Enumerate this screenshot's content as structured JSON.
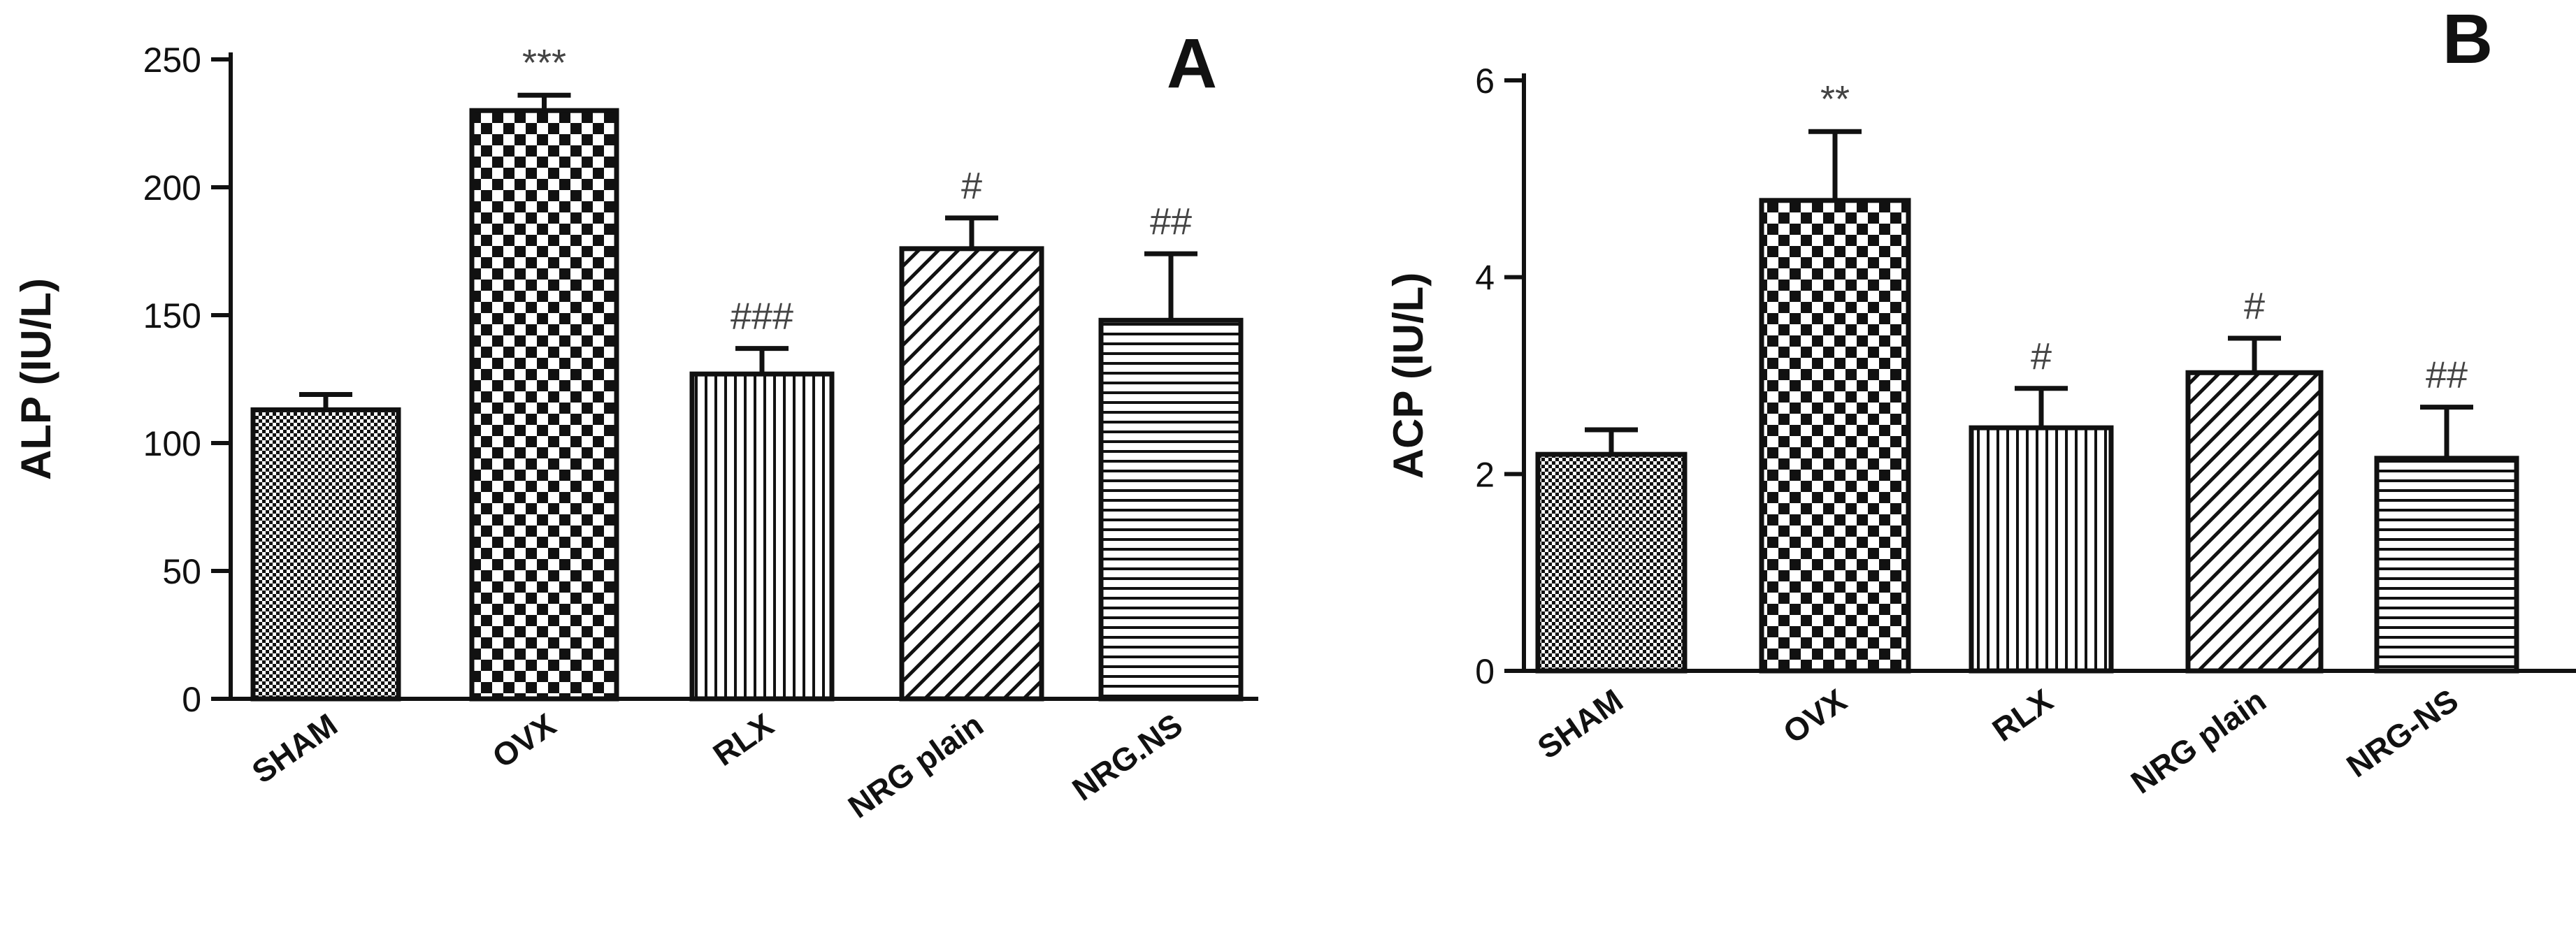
{
  "chart_data": [
    {
      "panel_label": "A",
      "type": "bar",
      "ylabel": "ALP (IU/L)",
      "ylim": [
        0,
        250
      ],
      "yticks": [
        "0",
        "50",
        "100",
        "150",
        "200",
        "250"
      ],
      "categories": [
        "SHAM",
        "OVX",
        "RLX",
        "NRG plain",
        "NRG.NS"
      ],
      "values": [
        113,
        230,
        127,
        176,
        148
      ],
      "errors": [
        6,
        6,
        10,
        12,
        26
      ],
      "annotations": [
        "",
        "***",
        "###",
        "#",
        "##"
      ],
      "patterns": [
        "fine-dots",
        "checkerboard",
        "vertical-lines",
        "diagonal-lines",
        "horizontal-lines"
      ],
      "grid": false
    },
    {
      "panel_label": "B",
      "type": "bar",
      "ylabel": "ACP (IU/L)",
      "ylim": [
        0,
        6
      ],
      "yticks": [
        "0",
        "2",
        "4",
        "6"
      ],
      "categories": [
        "SHAM",
        "OVX",
        "RLX",
        "NRG plain",
        "NRG-NS"
      ],
      "values": [
        2.2,
        4.78,
        2.47,
        3.03,
        2.16
      ],
      "errors": [
        0.25,
        0.7,
        0.4,
        0.35,
        0.52
      ],
      "annotations": [
        "",
        "**",
        "#",
        "#",
        "##"
      ],
      "patterns": [
        "fine-dots",
        "checkerboard",
        "vertical-lines",
        "diagonal-lines",
        "horizontal-lines"
      ],
      "grid": false
    }
  ]
}
